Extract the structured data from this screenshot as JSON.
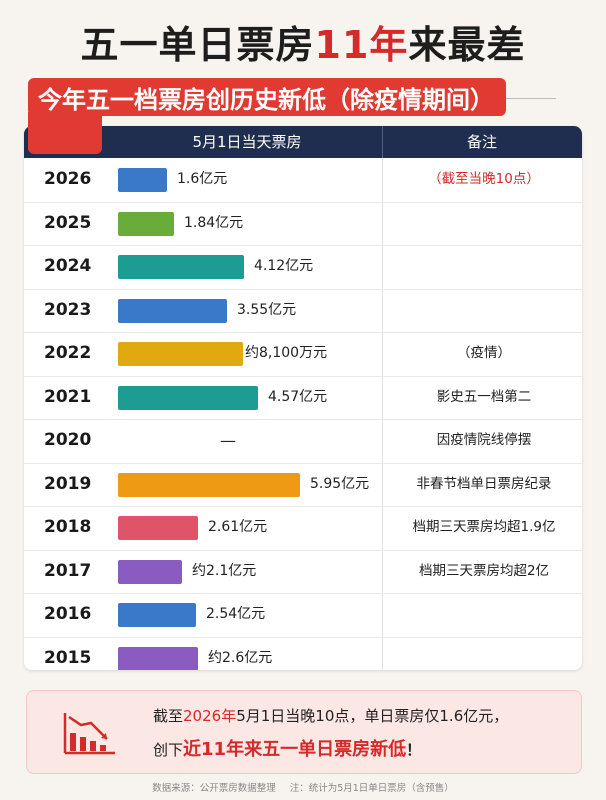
{
  "title": {
    "part1": "五一单日票房",
    "highlight": "11年",
    "part2": "来最差"
  },
  "subtitle": "今年五一档票房创历史新低（除疫情期间）",
  "chart_data": {
    "type": "table",
    "columns": [
      "",
      "5月1日当天票房",
      "备注"
    ],
    "unit_note": "亿元",
    "rows": [
      {
        "year": "2026",
        "value": 1.6,
        "label": "1.6亿元",
        "note": "（截至当晚10点）",
        "note_color": "#d42a2a",
        "color": "#3a78c9"
      },
      {
        "year": "2025",
        "value": 1.84,
        "label": "1.84亿元",
        "note": "",
        "color": "#6aac3a"
      },
      {
        "year": "2024",
        "value": 4.12,
        "label": "4.12亿元",
        "note": "",
        "color": "#1d9c93"
      },
      {
        "year": "2023",
        "value": 3.55,
        "label": "3.55亿元",
        "note": "",
        "color": "#3a78c9"
      },
      {
        "year": "2022",
        "value": 0.81,
        "label": "约8,100万元",
        "note": "（疫情）",
        "color": "#e0a910",
        "display_scale": 4.1
      },
      {
        "year": "2021",
        "value": 4.57,
        "label": "4.57亿元",
        "note": "影史五一档第二",
        "color": "#1d9c93"
      },
      {
        "year": "2020",
        "value": null,
        "label": "—",
        "note": "因疫情院线停摆",
        "color": ""
      },
      {
        "year": "2019",
        "value": 5.95,
        "label": "5.95亿元",
        "note": "非春节档单日票房纪录",
        "color": "#ee9a14"
      },
      {
        "year": "2018",
        "value": 2.61,
        "label": "2.61亿元",
        "note": "档期三天票房均超1.9亿",
        "color": "#e0546a"
      },
      {
        "year": "2017",
        "value": 2.1,
        "label": "约2.1亿元",
        "note": "档期三天票房均超2亿",
        "color": "#8a5cc2"
      },
      {
        "year": "2016",
        "value": 2.54,
        "label": "2.54亿元",
        "note": "",
        "color": "#3a78c9"
      },
      {
        "year": "2015",
        "value": 2.6,
        "label": "约2.6亿元",
        "note": "",
        "color": "#8a5cc2"
      }
    ]
  },
  "summary": {
    "l1_a": "截至",
    "l1_date": "2026年",
    "l1_b": "5月1日当晚10点，单日票房仅1.6亿元，",
    "l2_a": "创下",
    "l2_em": "近11年来五一单日票房新低",
    "l2_b": "！",
    "icon": "declining-chart-icon"
  },
  "footer": {
    "source": "数据来源：公开票房数据整理",
    "note": "注：统计为5月1日单日票房（含预售）"
  },
  "colors": {
    "accent_red": "#d42a2a",
    "header_navy": "#1f2d4f",
    "background": "#f7f4ef"
  }
}
